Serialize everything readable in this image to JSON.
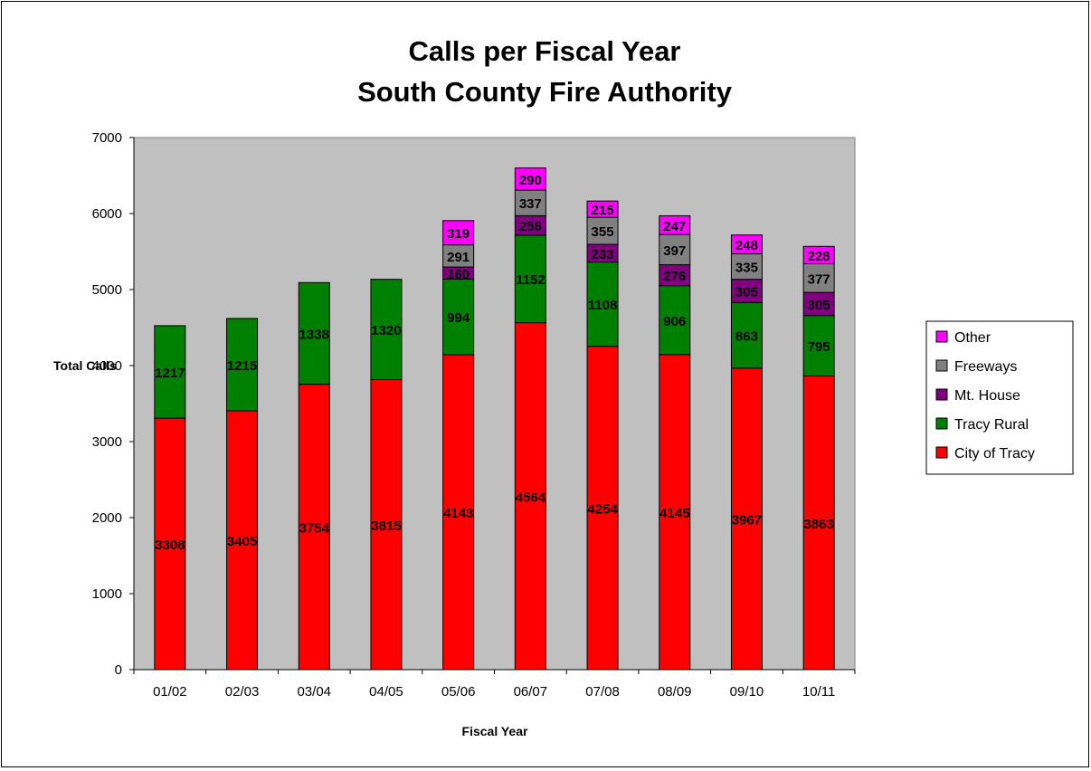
{
  "chart_data": {
    "type": "bar",
    "stacked": true,
    "title": "Calls per Fiscal Year",
    "subtitle": "South County Fire Authority",
    "xlabel": "Fiscal Year",
    "ylabel": "Total Calls",
    "ylim": [
      0,
      7000
    ],
    "yticks": [
      0,
      1000,
      2000,
      3000,
      4000,
      5000,
      6000,
      7000
    ],
    "grid": false,
    "legend_position": "right",
    "plot_background": "#c0c0c0",
    "categories": [
      "01/02",
      "02/03",
      "03/04",
      "04/05",
      "05/06",
      "06/07",
      "07/08",
      "08/09",
      "09/10",
      "10/11"
    ],
    "series": [
      {
        "name": "City of Tracy",
        "color": "#ff0000",
        "values": [
          3308,
          3405,
          3754,
          3815,
          4143,
          4564,
          4254,
          4145,
          3967,
          3863
        ]
      },
      {
        "name": "Tracy Rural",
        "color": "#008000",
        "values": [
          1217,
          1215,
          1338,
          1320,
          994,
          1152,
          1108,
          906,
          863,
          795
        ]
      },
      {
        "name": "Mt. House",
        "color": "#800080",
        "values": [
          null,
          null,
          null,
          null,
          160,
          256,
          233,
          276,
          305,
          305
        ]
      },
      {
        "name": "Freeways",
        "color": "#808080",
        "values": [
          null,
          null,
          null,
          null,
          291,
          337,
          355,
          397,
          335,
          377
        ]
      },
      {
        "name": "Other",
        "color": "#ff00ff",
        "values": [
          null,
          null,
          null,
          null,
          319,
          290,
          215,
          247,
          248,
          228
        ]
      }
    ]
  }
}
